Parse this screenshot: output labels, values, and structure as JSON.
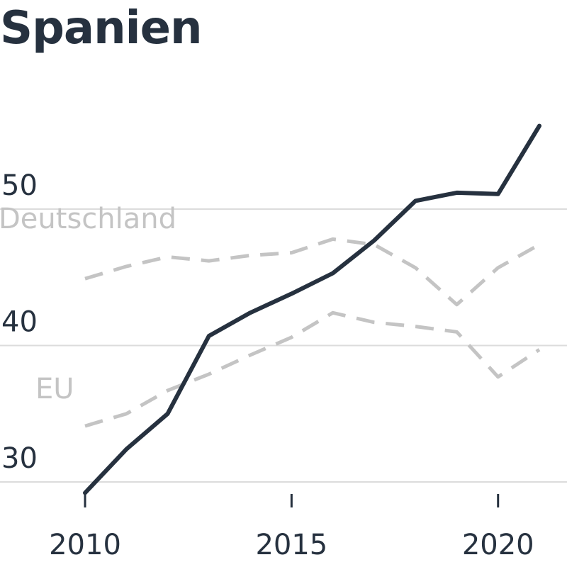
{
  "chart_data": {
    "type": "line",
    "title": "Spanien",
    "x": [
      2010,
      2011,
      2012,
      2013,
      2014,
      2015,
      2016,
      2017,
      2018,
      2019,
      2020,
      2021
    ],
    "x_ticks": [
      "2010",
      "2015",
      "2020"
    ],
    "y_ticks": [
      "30",
      "40",
      "50"
    ],
    "ylim": [
      29,
      57
    ],
    "xlim": [
      2010,
      2021
    ],
    "grid": true,
    "series": [
      {
        "name": "Spanien",
        "color": "#26313f",
        "style": "solid",
        "values": [
          29.2,
          32.4,
          35.0,
          40.7,
          42.4,
          43.8,
          45.3,
          47.7,
          50.6,
          51.2,
          51.1,
          56.1
        ]
      },
      {
        "name": "Deutschland",
        "color": "#c4c4c4",
        "style": "dashed",
        "values": [
          44.9,
          45.8,
          46.5,
          46.2,
          46.6,
          46.8,
          47.8,
          47.4,
          45.7,
          43.0,
          45.7,
          47.4
        ]
      },
      {
        "name": "EU",
        "color": "#c4c4c4",
        "style": "dashed",
        "values": [
          34.1,
          35.0,
          36.7,
          37.9,
          39.3,
          40.6,
          42.4,
          41.7,
          41.4,
          41.0,
          37.7,
          39.7
        ]
      }
    ],
    "labels": {
      "deutschland": "Deutschland",
      "eu": "EU"
    }
  }
}
